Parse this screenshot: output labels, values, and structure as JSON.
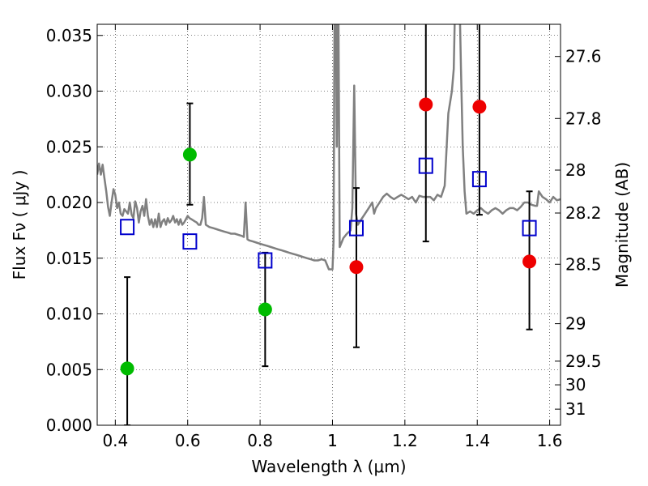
{
  "chart_data": {
    "type": "scatter",
    "xlabel": "Wavelength  λ (μm)",
    "ylabel": "Flux  Fν  ( μJy )",
    "y2label": "Magnitude (AB)",
    "xlim": [
      0.35,
      1.63
    ],
    "ylim": [
      0.0,
      0.036
    ],
    "grid": true,
    "x_ticks": [
      {
        "value": 0.4,
        "label": "0.4"
      },
      {
        "value": 0.6,
        "label": "0.6"
      },
      {
        "value": 0.8,
        "label": "0.8"
      },
      {
        "value": 1.0,
        "label": "1"
      },
      {
        "value": 1.2,
        "label": "1.2"
      },
      {
        "value": 1.4,
        "label": "1.4"
      },
      {
        "value": 1.6,
        "label": "1.6"
      }
    ],
    "y_ticks": [
      {
        "value": 0.0,
        "label": "0.000"
      },
      {
        "value": 0.005,
        "label": "0.005"
      },
      {
        "value": 0.01,
        "label": "0.010"
      },
      {
        "value": 0.015,
        "label": "0.015"
      },
      {
        "value": 0.02,
        "label": "0.020"
      },
      {
        "value": 0.025,
        "label": "0.025"
      },
      {
        "value": 0.03,
        "label": "0.030"
      },
      {
        "value": 0.035,
        "label": "0.035"
      }
    ],
    "y2_ticks": [
      {
        "mag": 27.6,
        "label": "27.6"
      },
      {
        "mag": 27.8,
        "label": "27.8"
      },
      {
        "mag": 28.0,
        "label": "28"
      },
      {
        "mag": 28.2,
        "label": "28.2"
      },
      {
        "mag": 28.5,
        "label": "28.5"
      },
      {
        "mag": 29.0,
        "label": "29"
      },
      {
        "mag": 29.5,
        "label": "29.5"
      },
      {
        "mag": 30.0,
        "label": "30"
      },
      {
        "mag": 31.0,
        "label": "31"
      }
    ],
    "colors": {
      "spectrum": "#808080",
      "model": "#0000cc",
      "green": "#00bb00",
      "red": "#ee0000",
      "errorbar": "#000000"
    },
    "series": [
      {
        "kind": "model_spectrum",
        "points": [
          [
            0.35,
            0.0225
          ],
          [
            0.355,
            0.0235
          ],
          [
            0.36,
            0.0225
          ],
          [
            0.365,
            0.0234
          ],
          [
            0.37,
            0.0222
          ],
          [
            0.375,
            0.021
          ],
          [
            0.38,
            0.0196
          ],
          [
            0.385,
            0.0188
          ],
          [
            0.39,
            0.0201
          ],
          [
            0.395,
            0.0212
          ],
          [
            0.4,
            0.0207
          ],
          [
            0.405,
            0.0195
          ],
          [
            0.41,
            0.02
          ],
          [
            0.415,
            0.019
          ],
          [
            0.42,
            0.0188
          ],
          [
            0.425,
            0.0194
          ],
          [
            0.43,
            0.0192
          ],
          [
            0.435,
            0.019
          ],
          [
            0.44,
            0.02
          ],
          [
            0.445,
            0.0189
          ],
          [
            0.45,
            0.0186
          ],
          [
            0.455,
            0.0201
          ],
          [
            0.46,
            0.0195
          ],
          [
            0.465,
            0.0182
          ],
          [
            0.47,
            0.0192
          ],
          [
            0.475,
            0.0197
          ],
          [
            0.48,
            0.0188
          ],
          [
            0.485,
            0.0203
          ],
          [
            0.49,
            0.0188
          ],
          [
            0.495,
            0.018
          ],
          [
            0.5,
            0.0185
          ],
          [
            0.505,
            0.0178
          ],
          [
            0.51,
            0.0185
          ],
          [
            0.515,
            0.0178
          ],
          [
            0.52,
            0.019
          ],
          [
            0.525,
            0.0178
          ],
          [
            0.53,
            0.0183
          ],
          [
            0.535,
            0.0185
          ],
          [
            0.54,
            0.018
          ],
          [
            0.545,
            0.0186
          ],
          [
            0.55,
            0.0182
          ],
          [
            0.555,
            0.0184
          ],
          [
            0.56,
            0.0188
          ],
          [
            0.565,
            0.0182
          ],
          [
            0.57,
            0.0185
          ],
          [
            0.575,
            0.018
          ],
          [
            0.58,
            0.0185
          ],
          [
            0.585,
            0.018
          ],
          [
            0.59,
            0.0182
          ],
          [
            0.595,
            0.0185
          ],
          [
            0.6,
            0.0188
          ],
          [
            0.605,
            0.0186
          ],
          [
            0.61,
            0.0185
          ],
          [
            0.62,
            0.0183
          ],
          [
            0.625,
            0.0182
          ],
          [
            0.63,
            0.018
          ],
          [
            0.635,
            0.018
          ],
          [
            0.64,
            0.0186
          ],
          [
            0.645,
            0.0205
          ],
          [
            0.65,
            0.018
          ],
          [
            0.66,
            0.0178
          ],
          [
            0.67,
            0.0177
          ],
          [
            0.68,
            0.0176
          ],
          [
            0.69,
            0.0175
          ],
          [
            0.7,
            0.0174
          ],
          [
            0.71,
            0.0173
          ],
          [
            0.72,
            0.0172
          ],
          [
            0.73,
            0.0172
          ],
          [
            0.74,
            0.0171
          ],
          [
            0.75,
            0.017
          ],
          [
            0.755,
            0.0169
          ],
          [
            0.76,
            0.02
          ],
          [
            0.765,
            0.0167
          ],
          [
            0.77,
            0.0166
          ],
          [
            0.78,
            0.0165
          ],
          [
            0.79,
            0.0164
          ],
          [
            0.8,
            0.0163
          ],
          [
            0.81,
            0.0162
          ],
          [
            0.82,
            0.0161
          ],
          [
            0.83,
            0.016
          ],
          [
            0.84,
            0.0159
          ],
          [
            0.85,
            0.0158
          ],
          [
            0.86,
            0.0157
          ],
          [
            0.87,
            0.0156
          ],
          [
            0.88,
            0.0155
          ],
          [
            0.89,
            0.0154
          ],
          [
            0.9,
            0.0153
          ],
          [
            0.91,
            0.0152
          ],
          [
            0.92,
            0.0151
          ],
          [
            0.93,
            0.015
          ],
          [
            0.94,
            0.0149
          ],
          [
            0.95,
            0.0148
          ],
          [
            0.96,
            0.0148
          ],
          [
            0.97,
            0.0149
          ],
          [
            0.98,
            0.0148
          ],
          [
            0.99,
            0.014
          ],
          [
            1.0,
            0.014
          ],
          [
            1.003,
            0.0165
          ],
          [
            1.006,
            0.04
          ],
          [
            1.009,
            0.04
          ],
          [
            1.012,
            0.025
          ],
          [
            1.016,
            0.04
          ],
          [
            1.02,
            0.016
          ],
          [
            1.03,
            0.0168
          ],
          [
            1.04,
            0.0172
          ],
          [
            1.05,
            0.0175
          ],
          [
            1.055,
            0.0195
          ],
          [
            1.06,
            0.0305
          ],
          [
            1.065,
            0.019
          ],
          [
            1.07,
            0.018
          ],
          [
            1.08,
            0.0185
          ],
          [
            1.09,
            0.019
          ],
          [
            1.1,
            0.0195
          ],
          [
            1.11,
            0.02
          ],
          [
            1.115,
            0.019
          ],
          [
            1.12,
            0.0195
          ],
          [
            1.13,
            0.02
          ],
          [
            1.14,
            0.0205
          ],
          [
            1.15,
            0.0208
          ],
          [
            1.16,
            0.0205
          ],
          [
            1.17,
            0.0203
          ],
          [
            1.18,
            0.0205
          ],
          [
            1.19,
            0.0207
          ],
          [
            1.2,
            0.0205
          ],
          [
            1.21,
            0.0203
          ],
          [
            1.22,
            0.0205
          ],
          [
            1.23,
            0.02
          ],
          [
            1.24,
            0.0206
          ],
          [
            1.25,
            0.0205
          ],
          [
            1.26,
            0.0205
          ],
          [
            1.27,
            0.0205
          ],
          [
            1.28,
            0.0202
          ],
          [
            1.29,
            0.0207
          ],
          [
            1.3,
            0.0205
          ],
          [
            1.31,
            0.0215
          ],
          [
            1.32,
            0.028
          ],
          [
            1.33,
            0.03
          ],
          [
            1.335,
            0.032
          ],
          [
            1.34,
            0.04
          ],
          [
            1.35,
            0.04
          ],
          [
            1.355,
            0.032
          ],
          [
            1.36,
            0.025
          ],
          [
            1.365,
            0.021
          ],
          [
            1.37,
            0.019
          ],
          [
            1.38,
            0.0192
          ],
          [
            1.39,
            0.019
          ],
          [
            1.4,
            0.0193
          ],
          [
            1.41,
            0.0195
          ],
          [
            1.42,
            0.0192
          ],
          [
            1.43,
            0.019
          ],
          [
            1.44,
            0.0193
          ],
          [
            1.45,
            0.0195
          ],
          [
            1.46,
            0.0193
          ],
          [
            1.47,
            0.019
          ],
          [
            1.48,
            0.0193
          ],
          [
            1.49,
            0.0195
          ],
          [
            1.5,
            0.0195
          ],
          [
            1.51,
            0.0193
          ],
          [
            1.52,
            0.0196
          ],
          [
            1.53,
            0.02
          ],
          [
            1.54,
            0.02
          ],
          [
            1.55,
            0.0198
          ],
          [
            1.56,
            0.0197
          ],
          [
            1.565,
            0.0197
          ],
          [
            1.57,
            0.021
          ],
          [
            1.58,
            0.0205
          ],
          [
            1.59,
            0.0203
          ],
          [
            1.6,
            0.02
          ],
          [
            1.61,
            0.0205
          ],
          [
            1.62,
            0.0202
          ],
          [
            1.63,
            0.0203
          ]
        ]
      },
      {
        "kind": "model_photometry",
        "points": [
          [
            0.433,
            0.0178
          ],
          [
            0.606,
            0.0165
          ],
          [
            0.814,
            0.0148
          ],
          [
            1.066,
            0.0177
          ],
          [
            1.258,
            0.0233
          ],
          [
            1.406,
            0.0221
          ],
          [
            1.544,
            0.0177
          ]
        ]
      },
      {
        "kind": "detections",
        "points": [
          [
            0.433,
            0.0051,
            0.0,
            0.0133
          ],
          [
            0.606,
            0.0243,
            0.0198,
            0.0289
          ],
          [
            0.814,
            0.0104,
            0.0053,
            0.0155
          ]
        ]
      },
      {
        "kind": "detections",
        "points": [
          [
            1.066,
            0.0142,
            0.007,
            0.0213
          ],
          [
            1.258,
            0.0288,
            0.0165,
            0.04
          ],
          [
            1.406,
            0.0286,
            0.0189,
            0.04
          ],
          [
            1.544,
            0.0147,
            0.0086,
            0.021
          ]
        ]
      }
    ]
  }
}
